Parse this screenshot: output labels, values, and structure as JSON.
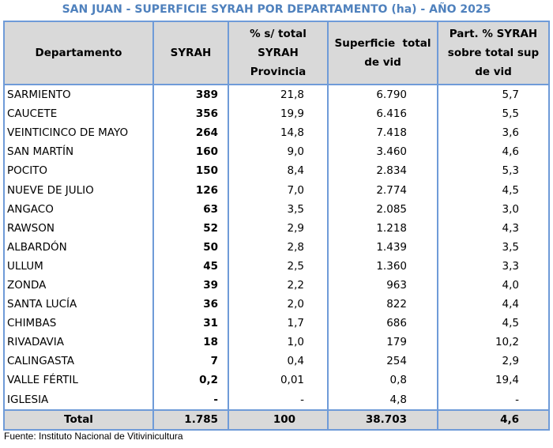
{
  "title": "SAN JUAN - SUPERFICIE SYRAH POR DEPARTAMENTO (ha) - AÑO 2025",
  "headers": {
    "departamento": "Departamento",
    "syrah": "SYRAH",
    "pct_line1": "% s/ total",
    "pct_line2": "SYRAH",
    "pct_line3": "Provincia",
    "sup_line1": "Superficie  total",
    "sup_line2": "de vid",
    "part_line1": "Part. % SYRAH",
    "part_line2": "sobre total sup",
    "part_line3": "de vid"
  },
  "rows": [
    {
      "departamento": "SARMIENTO",
      "syrah": "389",
      "pct": "21,8",
      "sup": "6.790",
      "part": "5,7"
    },
    {
      "departamento": "CAUCETE",
      "syrah": "356",
      "pct": "19,9",
      "sup": "6.416",
      "part": "5,5"
    },
    {
      "departamento": "VEINTICINCO DE MAYO",
      "syrah": "264",
      "pct": "14,8",
      "sup": "7.418",
      "part": "3,6"
    },
    {
      "departamento": "SAN MARTÍN",
      "syrah": "160",
      "pct": "9,0",
      "sup": "3.460",
      "part": "4,6"
    },
    {
      "departamento": "POCITO",
      "syrah": "150",
      "pct": "8,4",
      "sup": "2.834",
      "part": "5,3"
    },
    {
      "departamento": "NUEVE DE JULIO",
      "syrah": "126",
      "pct": "7,0",
      "sup": "2.774",
      "part": "4,5"
    },
    {
      "departamento": "ANGACO",
      "syrah": "63",
      "pct": "3,5",
      "sup": "2.085",
      "part": "3,0"
    },
    {
      "departamento": "RAWSON",
      "syrah": "52",
      "pct": "2,9",
      "sup": "1.218",
      "part": "4,3"
    },
    {
      "departamento": "ALBARDÓN",
      "syrah": "50",
      "pct": "2,8",
      "sup": "1.439",
      "part": "3,5"
    },
    {
      "departamento": "ULLUM",
      "syrah": "45",
      "pct": "2,5",
      "sup": "1.360",
      "part": "3,3"
    },
    {
      "departamento": "ZONDA",
      "syrah": "39",
      "pct": "2,2",
      "sup": "963",
      "part": "4,0"
    },
    {
      "departamento": "SANTA LUCÍA",
      "syrah": "36",
      "pct": "2,0",
      "sup": "822",
      "part": "4,4"
    },
    {
      "departamento": "CHIMBAS",
      "syrah": "31",
      "pct": "1,7",
      "sup": "686",
      "part": "4,5"
    },
    {
      "departamento": "RIVADAVIA",
      "syrah": "18",
      "pct": "1,0",
      "sup": "179",
      "part": "10,2"
    },
    {
      "departamento": "CALINGASTA",
      "syrah": "7",
      "pct": "0,4",
      "sup": "254",
      "part": "2,9"
    },
    {
      "departamento": "VALLE FÉRTIL",
      "syrah": "0,2",
      "pct": "0,01",
      "sup": "0,8",
      "part": "19,4"
    },
    {
      "departamento": "IGLESIA",
      "syrah": "-",
      "pct": "-",
      "sup": "4,8",
      "part": "-"
    }
  ],
  "total": {
    "label": "Total",
    "syrah": "1.785",
    "pct": "100",
    "sup": "38.703",
    "part": "4,6"
  },
  "source": "Fuente: Instituto Nacional de Vitivinicultura",
  "colors": {
    "title": "#4f81bd",
    "border": "#6f9bd8",
    "header_bg": "#d9d9d9"
  }
}
